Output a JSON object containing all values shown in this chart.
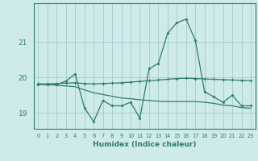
{
  "title": "",
  "xlabel": "Humidex (Indice chaleur)",
  "background_color": "#ceeaea",
  "grid_color": "#aacfcf",
  "line_color": "#2e7d6e",
  "x_values": [
    0,
    1,
    2,
    3,
    4,
    5,
    6,
    7,
    8,
    9,
    10,
    11,
    12,
    13,
    14,
    15,
    16,
    17,
    18,
    19,
    20,
    21,
    22,
    23
  ],
  "series1": [
    19.8,
    19.8,
    19.8,
    19.9,
    20.1,
    19.15,
    18.75,
    19.35,
    19.2,
    19.2,
    19.3,
    18.85,
    20.25,
    20.4,
    21.25,
    21.55,
    21.65,
    21.05,
    19.6,
    19.45,
    19.3,
    19.5,
    19.2,
    19.2
  ],
  "series2": [
    19.82,
    19.82,
    19.83,
    19.84,
    19.85,
    19.83,
    19.82,
    19.83,
    19.84,
    19.85,
    19.87,
    19.89,
    19.91,
    19.93,
    19.95,
    19.97,
    19.98,
    19.97,
    19.96,
    19.95,
    19.94,
    19.93,
    19.92,
    19.91
  ],
  "series3": [
    19.82,
    19.8,
    19.78,
    19.76,
    19.74,
    19.65,
    19.57,
    19.52,
    19.47,
    19.42,
    19.4,
    19.37,
    19.35,
    19.33,
    19.32,
    19.32,
    19.32,
    19.32,
    19.3,
    19.27,
    19.22,
    19.2,
    19.15,
    19.13
  ],
  "ylim": [
    18.55,
    22.1
  ],
  "yticks": [
    19,
    20,
    21
  ],
  "xticks": [
    0,
    1,
    2,
    3,
    4,
    5,
    6,
    7,
    8,
    9,
    10,
    11,
    12,
    13,
    14,
    15,
    16,
    17,
    18,
    19,
    20,
    21,
    22,
    23
  ]
}
